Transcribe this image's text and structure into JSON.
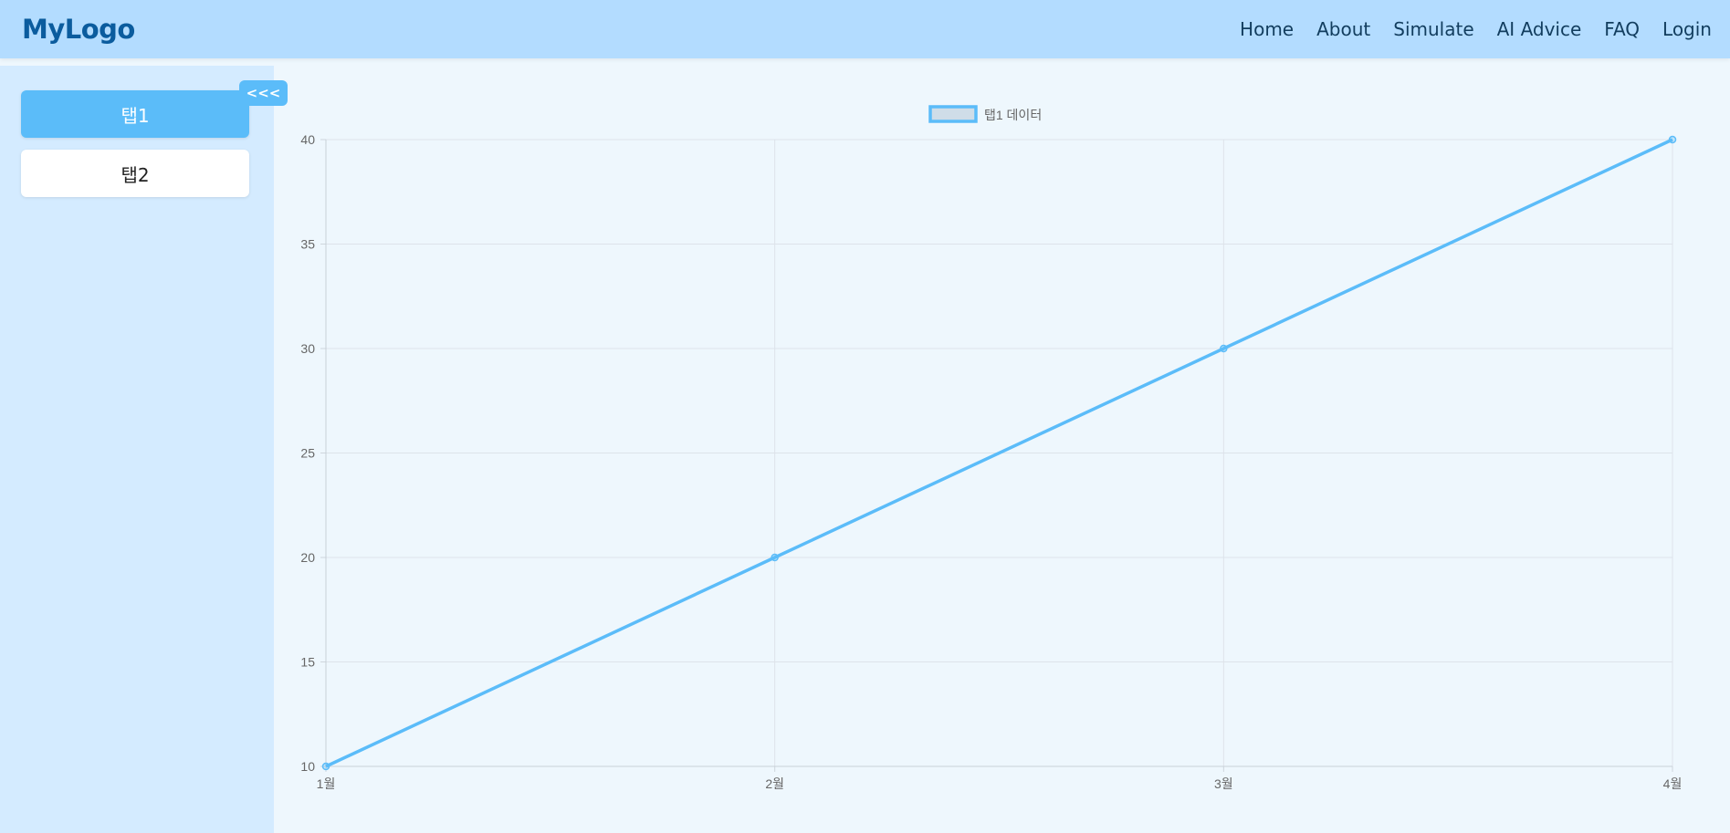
{
  "header": {
    "logo": "MyLogo",
    "nav": [
      "Home",
      "About",
      "Simulate",
      "AI Advice",
      "FAQ",
      "Login"
    ]
  },
  "sidebar": {
    "tabs": [
      {
        "label": "탭1",
        "active": true
      },
      {
        "label": "탭2",
        "active": false
      }
    ],
    "collapse_label": "<<<"
  },
  "colors": {
    "header_bg": "#b3dcff",
    "accent": "#5bbcf9",
    "logo": "#0b5c9e",
    "sidebar_bg": "#d4ebff",
    "page_bg": "#eef7fd"
  },
  "chart_data": {
    "type": "line",
    "categories": [
      "1월",
      "2월",
      "3월",
      "4월"
    ],
    "series": [
      {
        "name": "탭1 데이터",
        "values": [
          10,
          20,
          30,
          40
        ],
        "color": "#5bbcf9"
      }
    ],
    "ylim": [
      10,
      40
    ],
    "yticks": [
      10,
      15,
      20,
      25,
      30,
      35,
      40
    ],
    "grid": true,
    "legend": "top-center"
  }
}
